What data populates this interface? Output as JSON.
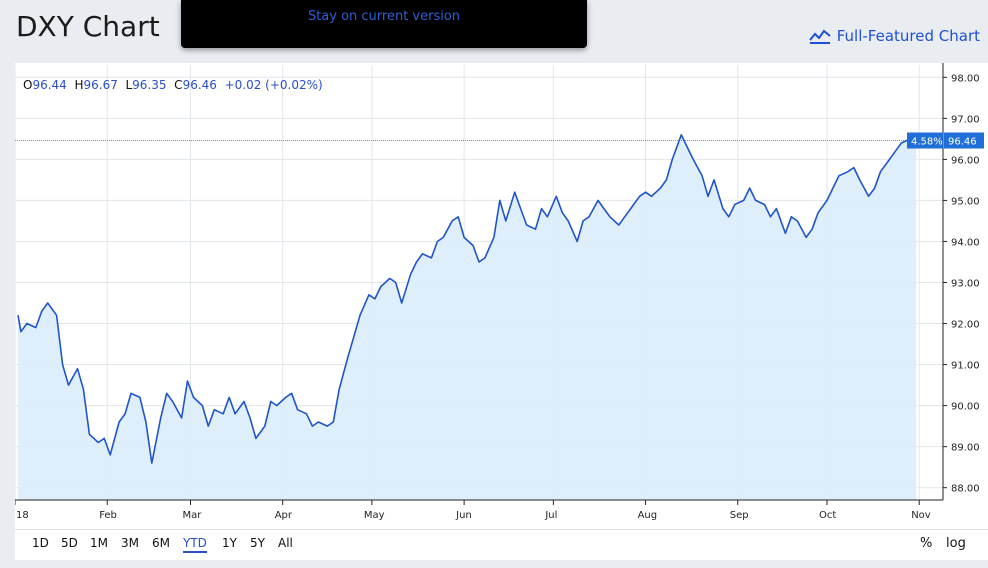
{
  "page": {
    "title": "DXY Chart"
  },
  "banner": {
    "link_text": "Stay on current version"
  },
  "header": {
    "full_chart_label": "Full-Featured Chart"
  },
  "ohlc": {
    "o_label": "O",
    "o_value": "96.44",
    "h_label": "H",
    "h_value": "96.67",
    "l_label": "L",
    "l_value": "96.35",
    "c_label": "C",
    "c_value": "96.46",
    "change": "+0.02 (+0.02%)"
  },
  "price_tag": {
    "pct": "4.58%",
    "value": "96.46"
  },
  "toolbar": {
    "ranges": [
      "1D",
      "5D",
      "1M",
      "3M",
      "6M",
      "YTD",
      "1Y",
      "5Y",
      "All"
    ],
    "active": "YTD",
    "percent_label": "%",
    "log_label": "log"
  },
  "colors": {
    "line": "#1f55c9",
    "fill": "#dcecfb",
    "accent": "#2a4fc9",
    "tag": "#1f6fd6"
  },
  "chart_data": {
    "type": "area",
    "title": "",
    "xlabel": "",
    "ylabel": "",
    "ylim": [
      87.7,
      98.3
    ],
    "grid": true,
    "yticks": [
      "98.00",
      "97.00",
      "96.00",
      "95.00",
      "94.00",
      "93.00",
      "92.00",
      "91.00",
      "90.00",
      "89.00",
      "88.00"
    ],
    "xticks": [
      "18",
      "Feb",
      "Mar",
      "Apr",
      "May",
      "Jun",
      "Jul",
      "Aug",
      "Sep",
      "Oct",
      "Nov"
    ],
    "x": [
      "2018-01-02",
      "2018-01-03",
      "2018-01-05",
      "2018-01-08",
      "2018-01-10",
      "2018-01-12",
      "2018-01-15",
      "2018-01-17",
      "2018-01-19",
      "2018-01-22",
      "2018-01-24",
      "2018-01-26",
      "2018-01-29",
      "2018-01-31",
      "2018-02-02",
      "2018-02-05",
      "2018-02-07",
      "2018-02-09",
      "2018-02-12",
      "2018-02-14",
      "2018-02-16",
      "2018-02-19",
      "2018-02-21",
      "2018-02-23",
      "2018-02-26",
      "2018-02-28",
      "2018-03-02",
      "2018-03-05",
      "2018-03-07",
      "2018-03-09",
      "2018-03-12",
      "2018-03-14",
      "2018-03-16",
      "2018-03-19",
      "2018-03-21",
      "2018-03-23",
      "2018-03-26",
      "2018-03-28",
      "2018-03-30",
      "2018-04-02",
      "2018-04-04",
      "2018-04-06",
      "2018-04-09",
      "2018-04-11",
      "2018-04-13",
      "2018-04-16",
      "2018-04-18",
      "2018-04-20",
      "2018-04-23",
      "2018-04-25",
      "2018-04-27",
      "2018-04-30",
      "2018-05-02",
      "2018-05-04",
      "2018-05-07",
      "2018-05-09",
      "2018-05-11",
      "2018-05-14",
      "2018-05-16",
      "2018-05-18",
      "2018-05-21",
      "2018-05-23",
      "2018-05-25",
      "2018-05-28",
      "2018-05-30",
      "2018-06-01",
      "2018-06-04",
      "2018-06-06",
      "2018-06-08",
      "2018-06-11",
      "2018-06-13",
      "2018-06-15",
      "2018-06-18",
      "2018-06-20",
      "2018-06-22",
      "2018-06-25",
      "2018-06-27",
      "2018-06-29",
      "2018-07-02",
      "2018-07-04",
      "2018-07-06",
      "2018-07-09",
      "2018-07-11",
      "2018-07-13",
      "2018-07-16",
      "2018-07-18",
      "2018-07-20",
      "2018-07-23",
      "2018-07-25",
      "2018-07-27",
      "2018-07-30",
      "2018-08-01",
      "2018-08-03",
      "2018-08-06",
      "2018-08-08",
      "2018-08-10",
      "2018-08-13",
      "2018-08-15",
      "2018-08-17",
      "2018-08-20",
      "2018-08-22",
      "2018-08-24",
      "2018-08-27",
      "2018-08-29",
      "2018-08-31",
      "2018-09-03",
      "2018-09-05",
      "2018-09-07",
      "2018-09-10",
      "2018-09-12",
      "2018-09-14",
      "2018-09-17",
      "2018-09-19",
      "2018-09-21",
      "2018-09-24",
      "2018-09-26",
      "2018-09-28",
      "2018-10-01",
      "2018-10-03",
      "2018-10-05",
      "2018-10-08",
      "2018-10-10",
      "2018-10-12",
      "2018-10-15",
      "2018-10-17",
      "2018-10-19",
      "2018-10-22",
      "2018-10-24",
      "2018-10-26",
      "2018-10-29",
      "2018-10-31"
    ],
    "values": [
      92.2,
      91.8,
      92.0,
      91.9,
      92.3,
      92.5,
      92.2,
      91.0,
      90.5,
      90.9,
      90.4,
      89.3,
      89.1,
      89.2,
      88.8,
      89.6,
      89.8,
      90.3,
      90.2,
      89.6,
      88.6,
      89.7,
      90.3,
      90.1,
      89.7,
      90.6,
      90.2,
      90.0,
      89.5,
      89.9,
      89.8,
      90.2,
      89.8,
      90.1,
      89.7,
      89.2,
      89.5,
      90.1,
      90.0,
      90.2,
      90.3,
      89.9,
      89.8,
      89.5,
      89.6,
      89.5,
      89.6,
      90.4,
      91.2,
      91.7,
      92.2,
      92.7,
      92.6,
      92.9,
      93.1,
      93.0,
      92.5,
      93.2,
      93.5,
      93.7,
      93.6,
      94.0,
      94.1,
      94.5,
      94.6,
      94.1,
      93.9,
      93.5,
      93.6,
      94.1,
      95.0,
      94.5,
      95.2,
      94.8,
      94.4,
      94.3,
      94.8,
      94.6,
      95.1,
      94.7,
      94.5,
      94.0,
      94.5,
      94.6,
      95.0,
      94.8,
      94.6,
      94.4,
      94.6,
      94.8,
      95.1,
      95.2,
      95.1,
      95.3,
      95.5,
      96.0,
      96.6,
      96.3,
      96.0,
      95.6,
      95.1,
      95.5,
      94.8,
      94.6,
      94.9,
      95.0,
      95.3,
      95.0,
      94.9,
      94.6,
      94.8,
      94.2,
      94.6,
      94.5,
      94.1,
      94.3,
      94.7,
      95.0,
      95.3,
      95.6,
      95.7,
      95.8,
      95.5,
      95.1,
      95.3,
      95.7,
      96.0,
      96.2,
      96.4,
      96.5,
      96.46
    ]
  }
}
